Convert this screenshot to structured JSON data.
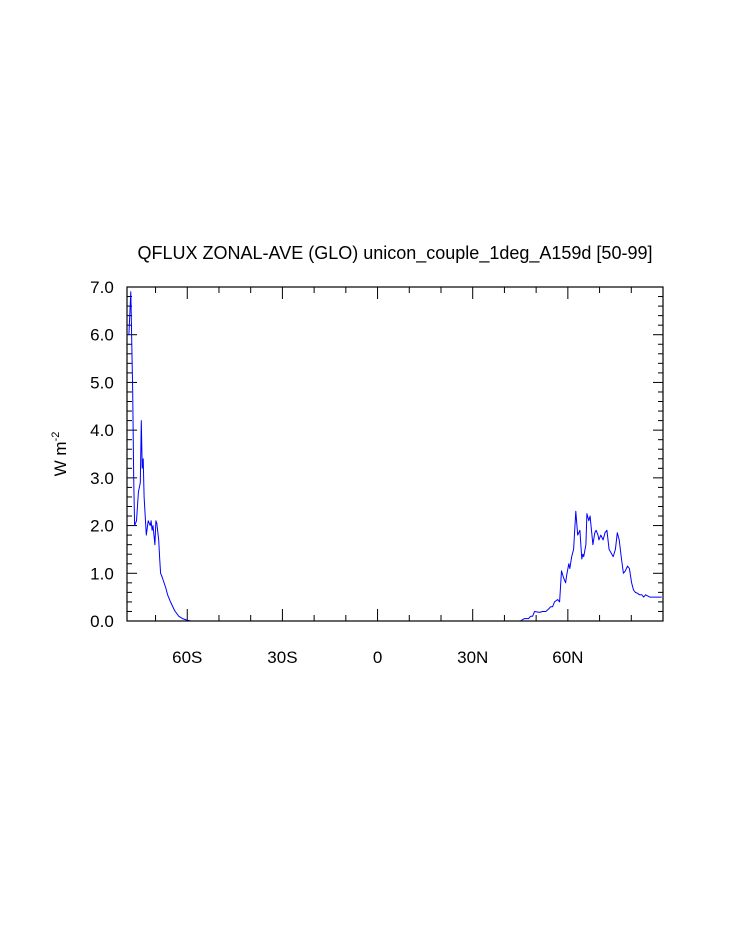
{
  "chart_data": {
    "type": "line",
    "title": "QFLUX ZONAL-AVE (GLO) unicon_couple_1deg_A159d [50-99]",
    "ylabel": "W m",
    "ylabel_sup": "-2",
    "xlim": [
      -79,
      90
    ],
    "ylim": [
      0,
      7
    ],
    "x_ticks": [
      {
        "value": -60,
        "label": "60S"
      },
      {
        "value": -30,
        "label": "30S"
      },
      {
        "value": 0,
        "label": "0"
      },
      {
        "value": 30,
        "label": "30N"
      },
      {
        "value": 60,
        "label": "60N"
      }
    ],
    "y_ticks": [
      {
        "value": 0,
        "label": "0.0"
      },
      {
        "value": 1,
        "label": "1.0"
      },
      {
        "value": 2,
        "label": "2.0"
      },
      {
        "value": 3,
        "label": "3.0"
      },
      {
        "value": 4,
        "label": "4.0"
      },
      {
        "value": 5,
        "label": "5.0"
      },
      {
        "value": 6,
        "label": "6.0"
      },
      {
        "value": 7,
        "label": "7.0"
      }
    ],
    "grid": false,
    "series": [
      {
        "color": "#0000ff",
        "x": [
          -78.4,
          -77.8,
          -77.2,
          -76.9,
          -76.6,
          -76.0,
          -75.4,
          -74.8,
          -74.5,
          -74.2,
          -73.9,
          -73.6,
          -72.9,
          -72.3,
          -71.7,
          -71.4,
          -71.1,
          -70.8,
          -70.2,
          -69.9,
          -69.6,
          -69.0,
          -68.7,
          -68.4,
          -68.1,
          -67.8,
          -66.8,
          -66.2,
          -65.3,
          -64.0,
          -62.7,
          -61.5,
          -60.2,
          -58.9,
          -57.6,
          -56.4,
          -55.1,
          -53.8,
          -52.5,
          -51.2,
          -48.0,
          -40.0,
          -30.0,
          -20.0,
          -10.0,
          0.0,
          10.0,
          20.0,
          30.0,
          40.0,
          45.0,
          46.3,
          47.6,
          48.3,
          48.9,
          49.5,
          51.1,
          52.0,
          53.0,
          53.9,
          54.6,
          55.2,
          55.8,
          56.8,
          57.4,
          58.0,
          58.7,
          59.3,
          59.6,
          60.3,
          60.6,
          61.2,
          61.8,
          62.5,
          63.1,
          63.8,
          64.4,
          64.7,
          65.0,
          65.7,
          66.0,
          66.6,
          67.0,
          67.3,
          67.9,
          68.5,
          68.9,
          69.5,
          69.8,
          70.4,
          71.1,
          71.7,
          72.3,
          73.0,
          74.3,
          75.0,
          75.6,
          76.2,
          76.9,
          77.5,
          78.1,
          78.8,
          79.4,
          80.1,
          80.7,
          81.3,
          82.0,
          82.6,
          83.3,
          83.9,
          84.5,
          85.8,
          87.1,
          88.4,
          89.6
        ],
        "y": [
          6.0,
          6.9,
          4.8,
          3.0,
          2.0,
          2.1,
          2.7,
          2.9,
          4.2,
          3.2,
          3.4,
          2.6,
          1.8,
          2.1,
          2.0,
          2.1,
          1.9,
          2.0,
          1.6,
          2.1,
          2.05,
          1.7,
          1.3,
          1.0,
          0.95,
          0.9,
          0.7,
          0.55,
          0.4,
          0.22,
          0.1,
          0.05,
          0.02,
          0.0,
          0.0,
          0.0,
          0.0,
          0.0,
          0.0,
          0.0,
          0.0,
          0.0,
          0.0,
          0.0,
          0.0,
          0.0,
          0.0,
          0.0,
          0.0,
          0.0,
          0.0,
          0.05,
          0.05,
          0.1,
          0.1,
          0.2,
          0.18,
          0.2,
          0.2,
          0.25,
          0.3,
          0.3,
          0.4,
          0.45,
          0.4,
          1.05,
          0.9,
          0.8,
          0.95,
          1.2,
          1.1,
          1.35,
          1.5,
          2.3,
          1.8,
          1.9,
          1.3,
          1.4,
          1.35,
          1.6,
          2.25,
          2.1,
          2.2,
          2.0,
          1.6,
          1.85,
          1.9,
          1.8,
          1.7,
          1.8,
          1.7,
          1.85,
          1.9,
          1.5,
          1.35,
          1.5,
          1.85,
          1.7,
          1.3,
          1.0,
          1.05,
          1.15,
          1.1,
          0.8,
          0.65,
          0.6,
          0.58,
          0.55,
          0.55,
          0.5,
          0.55,
          0.5,
          0.5,
          0.5,
          0.5
        ]
      }
    ]
  }
}
